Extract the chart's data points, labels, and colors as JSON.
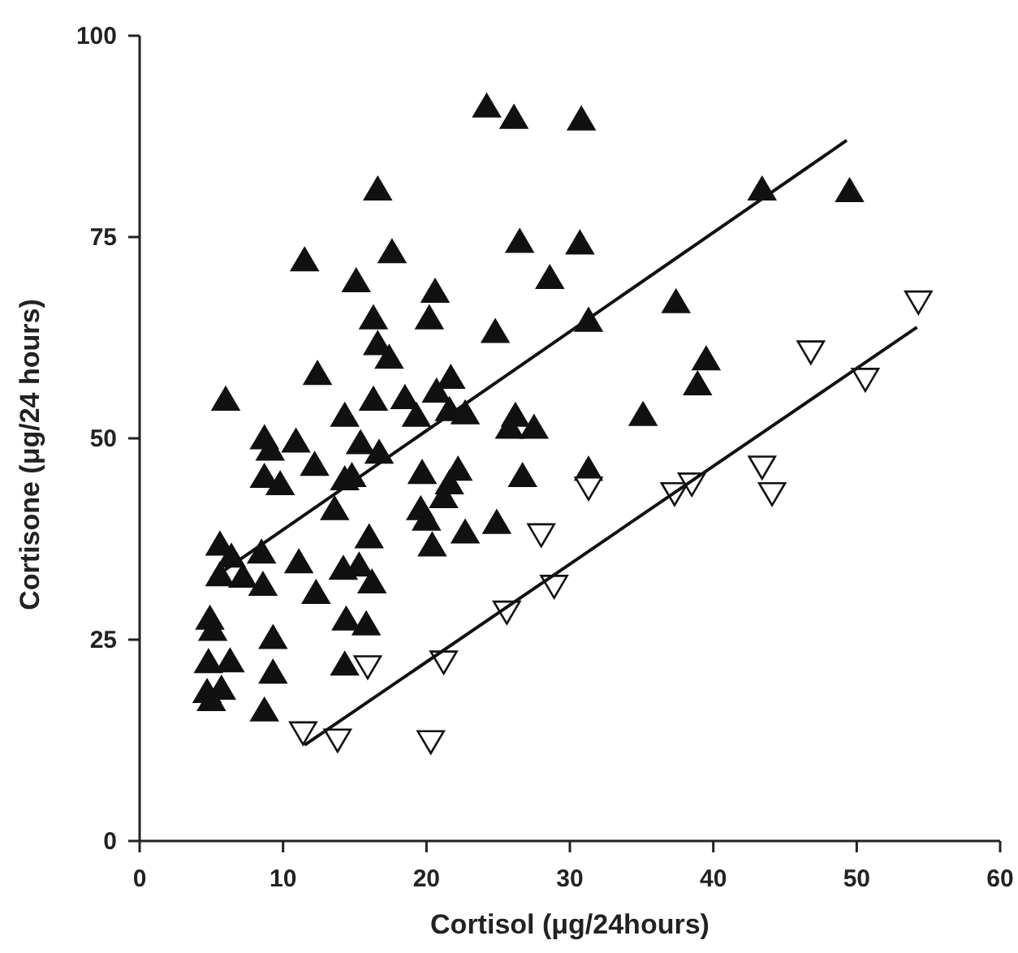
{
  "chart_data": {
    "type": "scatter",
    "xlabel": "Cortisol (μg/24hours)",
    "ylabel": "Cortisone (μg/24 hours)",
    "xlim": [
      0,
      60
    ],
    "xticks": [
      0,
      10,
      20,
      30,
      40,
      50,
      60
    ],
    "ylim": [
      0,
      100
    ],
    "yticks": [
      0,
      25,
      50,
      75,
      100
    ],
    "grid": false,
    "series": [
      {
        "marker": "triangle",
        "color": "#111111",
        "x": [
          24.2,
          26.1,
          30.8,
          16.6,
          43.4,
          49.5,
          11.5,
          17.6,
          26.5,
          30.7,
          15.1,
          28.6,
          20.6,
          37.4,
          31.3,
          39.5,
          38.9,
          35.1,
          31.3,
          20.2,
          16.3,
          16.6,
          17.4,
          12.4,
          6.0,
          16.3,
          18.5,
          19.3,
          20.7,
          21.7,
          14.3,
          8.7,
          10.9,
          9.1,
          15.4,
          16.7,
          12.2,
          8.7,
          9.8,
          14.3,
          14.8,
          19.7,
          13.6,
          19.6,
          20.0,
          20.4,
          16.0,
          5.6,
          6.4,
          5.6,
          7.2,
          8.5,
          8.6,
          11.1,
          12.3,
          14.2,
          15.3,
          16.2,
          4.9,
          5.1,
          9.3,
          14.4,
          15.8,
          4.8,
          6.3,
          9.3,
          14.3,
          4.7,
          5.7,
          5.0,
          8.7,
          24.8,
          21.6,
          22.7,
          26.2,
          27.5,
          25.8,
          22.2,
          21.6,
          21.2,
          26.7,
          22.7,
          24.9
        ],
        "values": [
          91.1,
          89.7,
          89.5,
          80.8,
          80.8,
          80.6,
          72.0,
          73.0,
          74.3,
          74.1,
          69.4,
          69.8,
          68.1,
          66.8,
          64.5,
          59.7,
          56.6,
          52.8,
          46.0,
          64.8,
          64.8,
          61.6,
          59.9,
          57.9,
          54.7,
          54.7,
          54.9,
          52.7,
          55.7,
          57.4,
          52.7,
          49.9,
          49.5,
          48.5,
          49.3,
          48.1,
          46.6,
          45.1,
          44.2,
          44.8,
          45.2,
          45.6,
          41.1,
          41.1,
          39.8,
          36.6,
          37.6,
          36.7,
          35.2,
          32.9,
          32.7,
          35.7,
          31.7,
          34.5,
          30.7,
          33.7,
          34.1,
          32.0,
          27.5,
          26.1,
          25.1,
          27.4,
          26.8,
          22.1,
          22.2,
          20.8,
          21.8,
          18.4,
          18.8,
          17.4,
          16.1,
          63.1,
          53.4,
          53.0,
          52.7,
          51.2,
          51.2,
          46.0,
          44.3,
          42.6,
          45.2,
          38.2,
          39.4
        ]
      },
      {
        "marker": "triangle-down",
        "color": "#ffffff",
        "x": [
          11.4,
          13.8,
          20.3,
          15.9,
          21.2,
          25.6,
          28.9,
          28.0,
          31.3,
          37.3,
          38.5,
          43.4,
          44.1,
          46.8,
          50.6,
          54.3
        ],
        "values": [
          13.6,
          12.7,
          12.5,
          21.8,
          22.4,
          28.6,
          31.8,
          38.2,
          44.0,
          43.3,
          44.5,
          46.6,
          43.3,
          60.9,
          57.5,
          67.1
        ]
      },
      {
        "type": "line",
        "color": "#111111",
        "x": [
          5.0,
          49.3
        ],
        "values": [
          32.5,
          87
        ]
      },
      {
        "type": "line",
        "color": "#111111",
        "x": [
          11.5,
          54.2
        ],
        "values": [
          11.9,
          63.8
        ]
      }
    ]
  }
}
